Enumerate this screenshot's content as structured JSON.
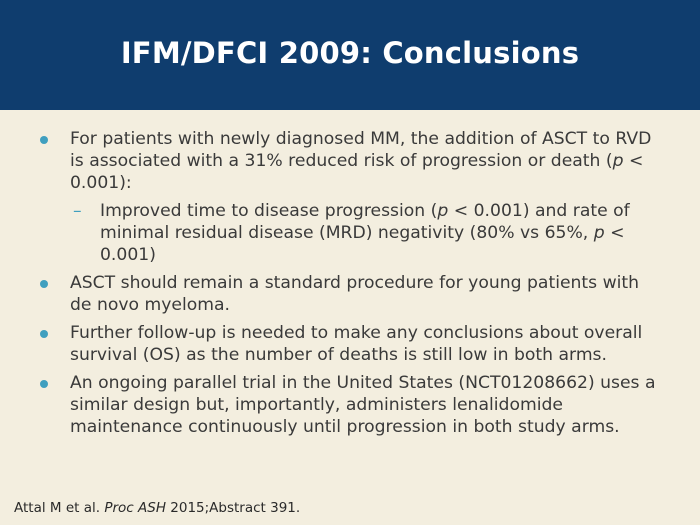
{
  "header": {
    "title": "IFM/DFCI 2009: Conclusions",
    "bg_color": "#0f3d6e"
  },
  "colors": {
    "background": "#f3eedf",
    "bullet": "#3f9fbf",
    "text": "#3a3a3a"
  },
  "bullets": [
    {
      "text_a": "For patients with newly diagnosed MM, the addition of ASCT to RVD is associated with a 31% reduced risk of progression or death (",
      "p": "p",
      "text_b": " < 0.001):",
      "sub": {
        "text_a": "Improved time to disease progression (",
        "p1": "p",
        "text_b": " < 0.001) and rate of minimal residual disease (MRD) negativity (80% vs 65%, ",
        "p2": "p",
        "text_c": " < 0.001)"
      }
    },
    {
      "text": "ASCT should remain a standard procedure for young patients with de novo myeloma."
    },
    {
      "text": "Further follow-up is needed to make any conclusions about overall survival (OS) as the number of deaths is still low in both arms."
    },
    {
      "text": "An ongoing parallel trial in the United States (NCT01208662) uses a similar design but, importantly, administers lenalidomide maintenance continuously until progression in both study arms."
    }
  ],
  "footnote": {
    "authors": "Attal M et al. ",
    "journal": "Proc ASH",
    "rest": " 2015;Abstract 391."
  }
}
